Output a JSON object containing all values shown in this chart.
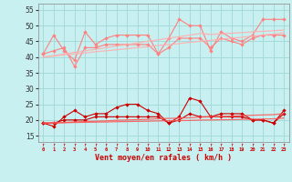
{
  "x": [
    0,
    1,
    2,
    3,
    4,
    5,
    6,
    7,
    8,
    9,
    10,
    11,
    12,
    13,
    14,
    15,
    16,
    17,
    18,
    19,
    20,
    21,
    22,
    23
  ],
  "upper_line1": [
    41,
    47,
    42,
    39,
    48,
    44,
    46,
    47,
    47,
    47,
    47,
    41,
    46,
    52,
    50,
    50,
    42,
    48,
    46,
    45,
    47,
    52,
    52,
    52
  ],
  "upper_line2": [
    41,
    42,
    43,
    37,
    43,
    43,
    44,
    44,
    44,
    44,
    44,
    41,
    43,
    46,
    46,
    46,
    43,
    46,
    45,
    44,
    46,
    47,
    47,
    47
  ],
  "upper_trend1": [
    40,
    40.5,
    41,
    41.5,
    42,
    42.5,
    43,
    43.5,
    44,
    44.5,
    45,
    45.5,
    46,
    46.5,
    47,
    47.5,
    47.2,
    47.4,
    47.6,
    47.8,
    48,
    48.2,
    48.4,
    48.6
  ],
  "upper_trend2": [
    40,
    40.3,
    40.7,
    41,
    41.3,
    41.7,
    42,
    42.3,
    42.7,
    43,
    43.3,
    43.7,
    44,
    44.3,
    44.7,
    45,
    45.3,
    45.7,
    46,
    46.3,
    46.7,
    47,
    47.3,
    47.7
  ],
  "lower_line1": [
    19,
    18,
    21,
    23,
    21,
    22,
    22,
    24,
    25,
    25,
    23,
    22,
    19,
    21,
    27,
    26,
    21,
    22,
    22,
    22,
    20,
    20,
    19,
    23
  ],
  "lower_line2": [
    19,
    19,
    20,
    20,
    20,
    21,
    21,
    21,
    21,
    21,
    21,
    21,
    19,
    20,
    22,
    21,
    21,
    21,
    21,
    21,
    20,
    20,
    19,
    22
  ],
  "lower_trend1": [
    19,
    19.1,
    19.2,
    19.4,
    19.5,
    19.6,
    19.7,
    19.9,
    20,
    20.1,
    20.2,
    20.4,
    20.5,
    20.6,
    20.7,
    20.9,
    21,
    21.1,
    21.2,
    21.4,
    21.5,
    21.6,
    21.7,
    22
  ],
  "lower_trend2": [
    19,
    19.05,
    19.1,
    19.2,
    19.25,
    19.3,
    19.35,
    19.45,
    19.5,
    19.55,
    19.6,
    19.7,
    19.75,
    19.8,
    19.85,
    19.95,
    20,
    20.05,
    20.1,
    20.2,
    20.25,
    20.3,
    20.35,
    20.6
  ],
  "bg_color": "#c8f0f0",
  "grid_color": "#a0d8d8",
  "salmon": "#ff8080",
  "red": "#cc0000",
  "xlabel": "Vent moyen/en rafales ( km/h )",
  "ylim": [
    13,
    57
  ],
  "yticks": [
    15,
    20,
    25,
    30,
    35,
    40,
    45,
    50,
    55
  ]
}
